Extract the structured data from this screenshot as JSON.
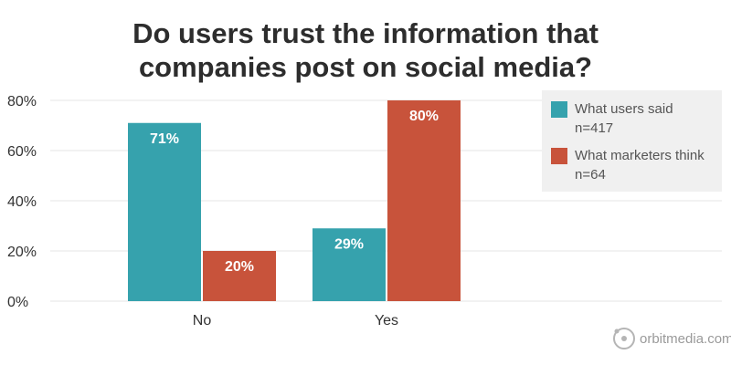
{
  "title": {
    "line1": "Do users trust the information that",
    "line2": "companies post on social media?"
  },
  "chart_data": {
    "type": "bar",
    "title": "Do users trust the information that companies post on social media?",
    "categories": [
      "No",
      "Yes"
    ],
    "series": [
      {
        "name": "What users said",
        "sample": "n=417",
        "color": "#36a2ad",
        "values": [
          71,
          29
        ],
        "labels": [
          "71%",
          "29%"
        ]
      },
      {
        "name": "What marketers think",
        "sample": "n=64",
        "color": "#c8533b",
        "values": [
          20,
          80
        ],
        "labels": [
          "20%",
          "80%"
        ]
      }
    ],
    "ylim": [
      0,
      80
    ],
    "yticks": [
      0,
      20,
      40,
      60,
      80
    ],
    "ytick_labels": [
      "0%",
      "20%",
      "40%",
      "60%",
      "80%"
    ],
    "xlabel": "",
    "ylabel": "",
    "grid": true,
    "legend_position": "top-right"
  },
  "watermark": {
    "text": "orbitmedia.com",
    "icon": "orbit-logo-icon"
  }
}
